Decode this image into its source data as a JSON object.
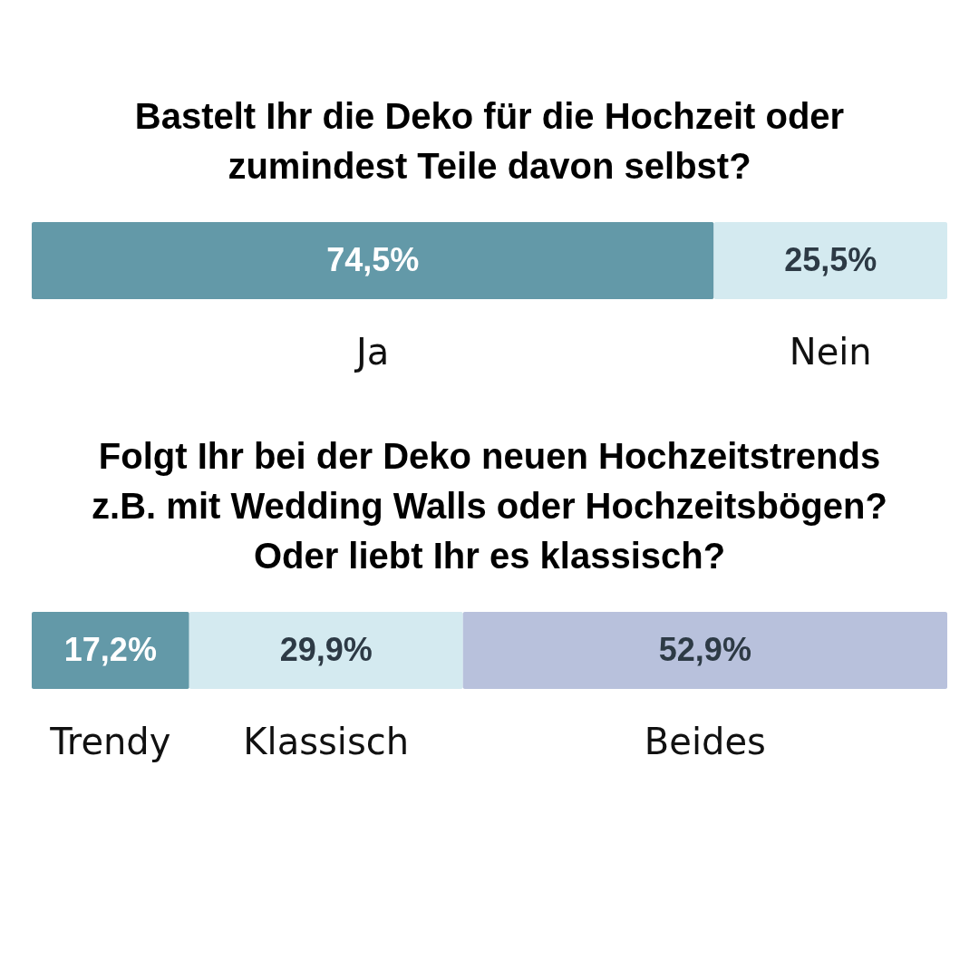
{
  "chart_data": [
    {
      "type": "bar",
      "orientation": "horizontal",
      "stacked": true,
      "title": "Bastelt Ihr die Deko für die Hochzeit oder zumindest Teile davon selbst?",
      "categories": [
        null
      ],
      "series": [
        {
          "name": "Ja",
          "color": "#6399a8",
          "values": [
            74.5
          ],
          "value_labels": [
            "74,5%"
          ]
        },
        {
          "name": "Nein",
          "color": "#d4eaf0",
          "values": [
            25.5
          ],
          "value_labels": [
            "25,5%"
          ]
        }
      ]
    },
    {
      "type": "bar",
      "orientation": "horizontal",
      "stacked": true,
      "title": "Folgt Ihr bei der Deko neuen Hochzeitstrends z.B. mit Wedding Walls oder Hochzeitsbögen? Oder liebt Ihr es klassisch?",
      "categories": [
        null
      ],
      "series": [
        {
          "name": "Trendy",
          "color": "#6399a8",
          "values": [
            17.2
          ],
          "value_labels": [
            "17,2%"
          ]
        },
        {
          "name": "Klassisch",
          "color": "#d4eaf0",
          "values": [
            29.9
          ],
          "value_labels": [
            "29,9%"
          ]
        },
        {
          "name": "Beides",
          "color": "#b8c1dc",
          "values": [
            52.9
          ],
          "value_labels": [
            "52,9%"
          ]
        }
      ]
    }
  ]
}
